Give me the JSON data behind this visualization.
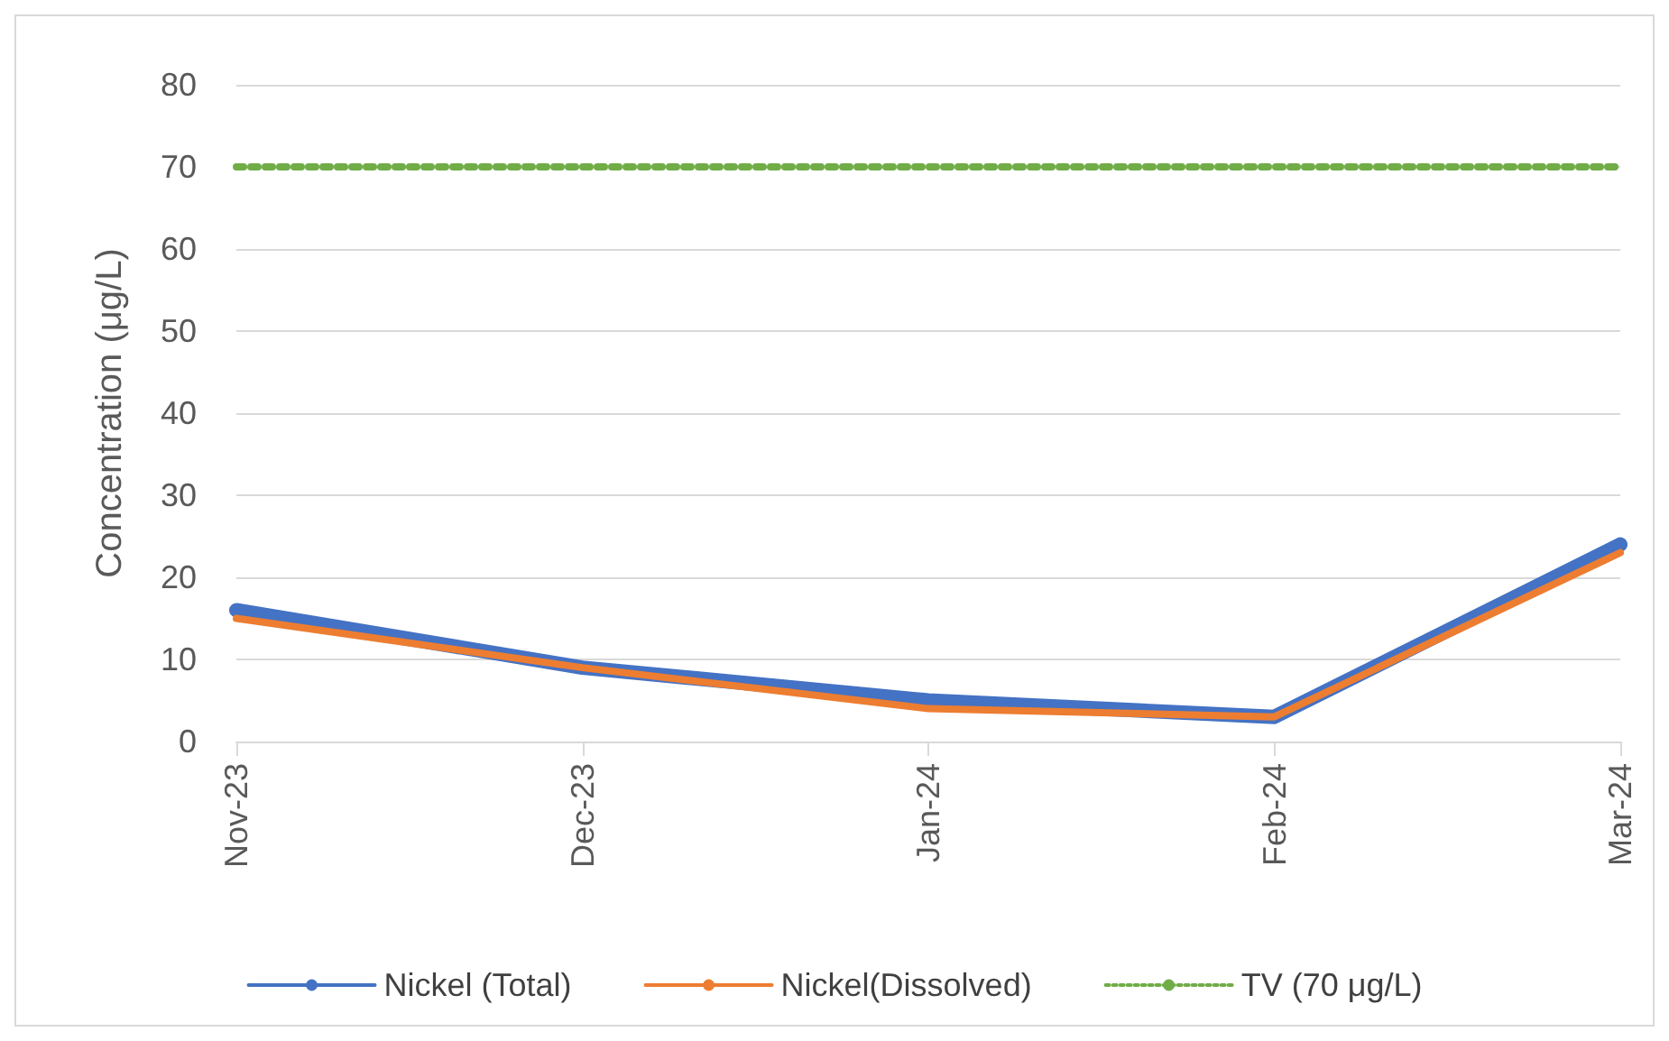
{
  "chart_data": {
    "type": "line",
    "ylabel": "Concentration (μg/L)",
    "categories": [
      "Nov-23",
      "Dec-23",
      "Jan-24",
      "Feb-24",
      "Mar-24"
    ],
    "series": [
      {
        "name": "Nickel (Total)",
        "color": "#4472c4",
        "values": [
          16,
          9,
          5,
          3,
          24
        ]
      },
      {
        "name": "Nickel(Dissolved)",
        "color": "#ed7d31",
        "values": [
          15,
          9,
          4,
          3,
          23
        ]
      },
      {
        "name": "TV (70 μg/L)",
        "color": "#70ad47",
        "values": [
          70,
          70,
          70,
          70,
          70
        ],
        "line_style": "dotted"
      }
    ],
    "ylim": [
      0,
      80
    ],
    "yticks": [
      0,
      10,
      20,
      30,
      40,
      50,
      60,
      70,
      80
    ],
    "grid": "y",
    "legend": "bottom",
    "marker": "none",
    "line_style": "solid"
  }
}
